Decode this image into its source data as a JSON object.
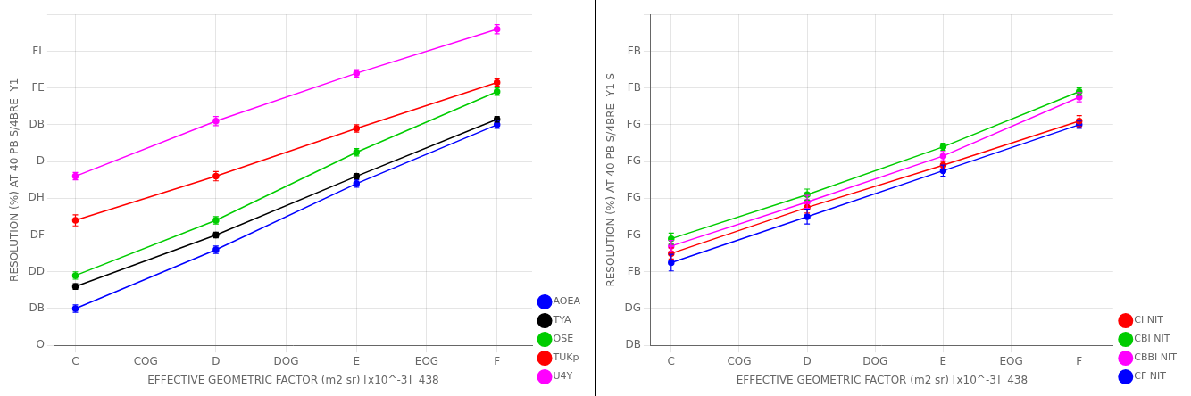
{
  "chart_data": [
    {
      "type": "line",
      "xlabel": "EFFECTIVE GEOMETRIC FACTOR (m2 sr) [x10^-3]  438",
      "ylabel": "RESOLUTION (%) AT 40 PB S/4BRE  Y1",
      "x": [
        0.3,
        0.4,
        0.5,
        0.6
      ],
      "xlim": [
        0.285,
        0.625
      ],
      "xticks": [
        {
          "value": 0.3,
          "label": "C"
        },
        {
          "value": 0.35,
          "label": "COG"
        },
        {
          "value": 0.4,
          "label": "D"
        },
        {
          "value": 0.45,
          "label": "DOG"
        },
        {
          "value": 0.5,
          "label": "E"
        },
        {
          "value": 0.55,
          "label": "EOG"
        },
        {
          "value": 0.6,
          "label": "F"
        }
      ],
      "ylim": [
        0,
        18
      ],
      "yticks": [
        {
          "value": 0,
          "label": "O"
        },
        {
          "value": 2,
          "label": "DB"
        },
        {
          "value": 4,
          "label": "DD"
        },
        {
          "value": 6,
          "label": "DF"
        },
        {
          "value": 8,
          "label": "DH"
        },
        {
          "value": 10,
          "label": "D"
        },
        {
          "value": 12,
          "label": "DB"
        },
        {
          "value": 14,
          "label": "FE"
        },
        {
          "value": 16,
          "label": "FL"
        },
        {
          "value": 18,
          "label": null
        }
      ],
      "grid": true,
      "legend": "lower right",
      "marker": "circle",
      "series": [
        {
          "name": "AOEA",
          "color": "#0000ff",
          "values": [
            2.0,
            5.2,
            8.8,
            12.0
          ],
          "errors": [
            0.2,
            0.2,
            0.2,
            0.2
          ]
        },
        {
          "name": "TYA",
          "color": "#000000",
          "values": [
            3.2,
            6.0,
            9.2,
            12.3
          ],
          "errors": [
            0.15,
            0.15,
            0.15,
            0.15
          ]
        },
        {
          "name": "OSE",
          "color": "#00cc00",
          "values": [
            3.8,
            6.8,
            10.5,
            13.8
          ],
          "errors": [
            0.2,
            0.2,
            0.2,
            0.2
          ]
        },
        {
          "name": "TUKp",
          "color": "#ff0000",
          "values": [
            6.8,
            9.2,
            11.8,
            14.3
          ],
          "errors": [
            0.3,
            0.25,
            0.2,
            0.2
          ]
        },
        {
          "name": "U4Y",
          "color": "#ff00ff",
          "values": [
            9.2,
            12.2,
            14.8,
            17.2
          ],
          "errors": [
            0.2,
            0.25,
            0.2,
            0.25
          ]
        }
      ]
    },
    {
      "type": "line",
      "xlabel": "EFFECTIVE GEOMETRIC FACTOR (m2 sr) [x10^-3]  438",
      "ylabel": "RESOLUTION (%) AT 40 PB S/4BRE  Y1 S",
      "x": [
        0.3,
        0.4,
        0.5,
        0.6
      ],
      "xlim": [
        0.285,
        0.625
      ],
      "xticks": [
        {
          "value": 0.3,
          "label": "C"
        },
        {
          "value": 0.35,
          "label": "COG"
        },
        {
          "value": 0.4,
          "label": "D"
        },
        {
          "value": 0.45,
          "label": "DOG"
        },
        {
          "value": 0.5,
          "label": "E"
        },
        {
          "value": 0.55,
          "label": "EOG"
        },
        {
          "value": 0.6,
          "label": "F"
        }
      ],
      "ylim": [
        4,
        22
      ],
      "yticks": [
        {
          "value": 4,
          "label": "DB"
        },
        {
          "value": 6,
          "label": "DG"
        },
        {
          "value": 8,
          "label": "FB"
        },
        {
          "value": 10,
          "label": "FG"
        },
        {
          "value": 12,
          "label": "FG"
        },
        {
          "value": 14,
          "label": "FG"
        },
        {
          "value": 16,
          "label": "FG"
        },
        {
          "value": 18,
          "label": "FB"
        },
        {
          "value": 20,
          "label": "FB"
        },
        {
          "value": 22,
          "label": null
        }
      ],
      "grid": true,
      "legend": "lower right",
      "marker": "circle",
      "series": [
        {
          "name": "CI NIT",
          "color": "#ff0000",
          "values": [
            9.0,
            11.5,
            13.8,
            16.2
          ],
          "errors": [
            0.3,
            0.3,
            0.2,
            0.3
          ]
        },
        {
          "name": "CBI NIT",
          "color": "#00cc00",
          "values": [
            9.8,
            12.2,
            14.8,
            17.8
          ],
          "errors": [
            0.3,
            0.3,
            0.2,
            0.2
          ]
        },
        {
          "name": "CBBI NIT",
          "color": "#ff00ff",
          "values": [
            9.4,
            11.8,
            14.3,
            17.5
          ],
          "errors": [
            0.3,
            0.35,
            0.25,
            0.25
          ]
        },
        {
          "name": "CF NIT",
          "color": "#0000ff",
          "values": [
            8.5,
            11.0,
            13.5,
            16.0
          ],
          "errors": [
            0.45,
            0.4,
            0.3,
            0.2
          ]
        }
      ]
    }
  ]
}
